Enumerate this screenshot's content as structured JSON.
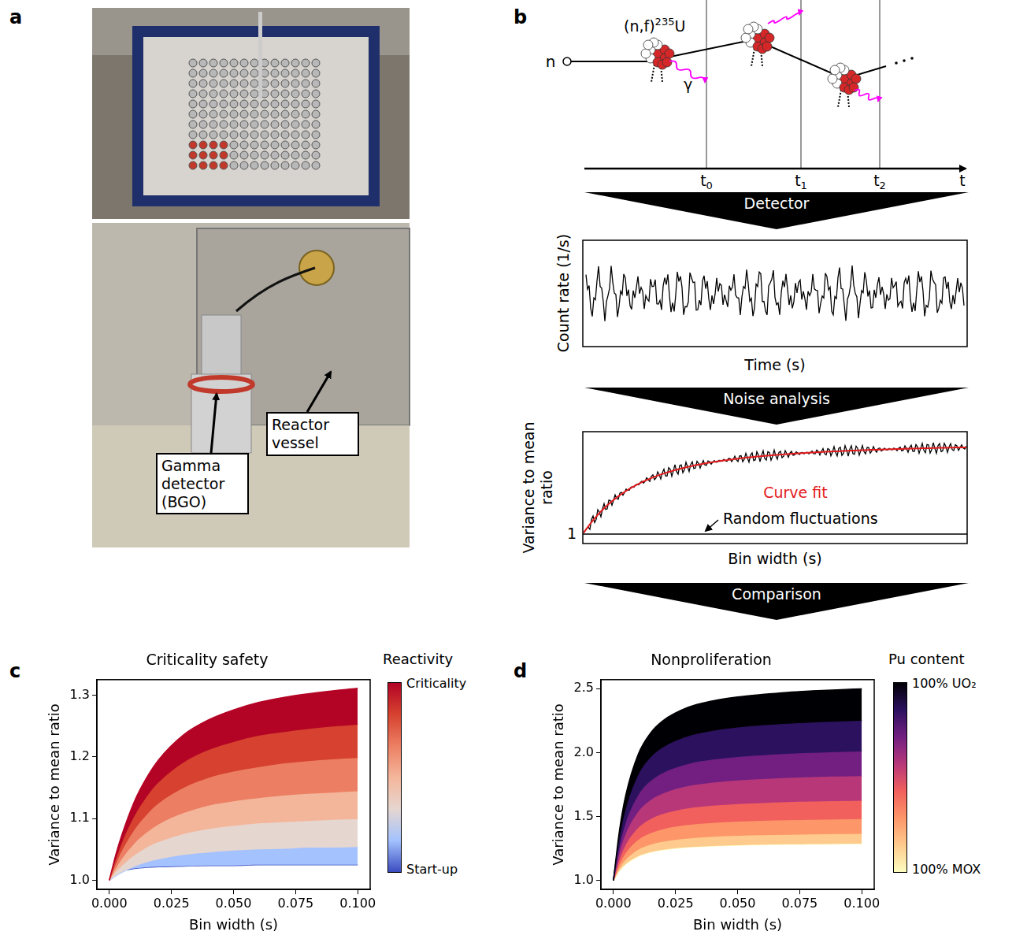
{
  "panel_labels": [
    "a",
    "b",
    "c",
    "d"
  ],
  "photos": {
    "labels": [
      "Gamma detector (BGO)",
      "Reactor vessel"
    ]
  },
  "diagram": {
    "particle": "n",
    "reaction": [
      "(n,f)",
      "235",
      "U"
    ],
    "gamma": "γ",
    "time_axis": "t",
    "time_marks": [
      [
        "t",
        "0"
      ],
      [
        "t",
        "1"
      ],
      [
        "t",
        "2"
      ]
    ],
    "steps": [
      "Detector",
      "Noise analysis",
      "Comparison"
    ],
    "count_plot": {
      "ylabel": "Count rate (1/s)",
      "xlabel": "Time (s)"
    },
    "vmr_plot": {
      "ylabel": "Variance to mean ratio",
      "xlabel": "Bin width (s)",
      "ytick": 1,
      "fit_label": "Curve fit",
      "baseline_label": "Random fluctuations"
    }
  },
  "chart_data": [
    {
      "type": "line",
      "title": "Criticality safety",
      "xlabel": "Bin width (s)",
      "ylabel": "Variance to mean ratio",
      "x": [
        0,
        0.0025,
        0.005,
        0.01,
        0.015,
        0.02,
        0.03,
        0.04,
        0.05,
        0.06,
        0.07,
        0.08,
        0.09,
        0.1
      ],
      "series": [
        {
          "color": "#b40426",
          "values": [
            1,
            1.04,
            1.073,
            1.127,
            1.166,
            1.196,
            1.236,
            1.26,
            1.276,
            1.288,
            1.296,
            1.302,
            1.307,
            1.311
          ]
        },
        {
          "color": "#d6422f",
          "values": [
            1,
            1.032,
            1.06,
            1.103,
            1.135,
            1.159,
            1.191,
            1.211,
            1.224,
            1.234,
            1.24,
            1.245,
            1.249,
            1.252
          ]
        },
        {
          "color": "#ec7f63",
          "values": [
            1,
            1.025,
            1.047,
            1.081,
            1.106,
            1.125,
            1.15,
            1.166,
            1.176,
            1.183,
            1.189,
            1.193,
            1.196,
            1.198
          ]
        },
        {
          "color": "#f4b69b",
          "values": [
            1,
            1.018,
            1.034,
            1.059,
            1.077,
            1.091,
            1.109,
            1.121,
            1.128,
            1.133,
            1.137,
            1.14,
            1.142,
            1.144
          ]
        },
        {
          "color": "#e6d6d0",
          "values": [
            1,
            1.013,
            1.023,
            1.04,
            1.053,
            1.062,
            1.075,
            1.083,
            1.088,
            1.092,
            1.094,
            1.096,
            1.098,
            1.099
          ]
        },
        {
          "color": "#a3c2fe",
          "values": [
            1,
            1.007,
            1.013,
            1.022,
            1.029,
            1.034,
            1.041,
            1.045,
            1.048,
            1.05,
            1.051,
            1.053,
            1.053,
            1.054
          ]
        },
        {
          "color": "#3b4cc0",
          "values": [
            1,
            1.01,
            1.015,
            1.019,
            1.021,
            1.022,
            1.023,
            1.024,
            1.024,
            1.025,
            1.025,
            1.025,
            1.025,
            1.025
          ]
        }
      ],
      "xlim": [
        -0.005,
        0.105
      ],
      "xticks": [
        {
          "value": 0,
          "label": "0.000"
        },
        {
          "value": 0.025,
          "label": "0.025"
        },
        {
          "value": 0.05,
          "label": "0.050"
        },
        {
          "value": 0.075,
          "label": "0.075"
        },
        {
          "value": 0.1,
          "label": "0.100"
        }
      ],
      "ylim": [
        0.985,
        1.325
      ],
      "yticks": [
        {
          "value": 1,
          "label": "1.0"
        },
        {
          "value": 1.1,
          "label": "1.1"
        },
        {
          "value": 1.2,
          "label": "1.2"
        },
        {
          "value": 1.3,
          "label": "1.3"
        }
      ],
      "grid": false,
      "colorbar": {
        "title": "Reactivity",
        "high_label": "Criticality",
        "low_label": "Start-up"
      }
    },
    {
      "type": "line",
      "title": "Nonproliferation",
      "xlabel": "Bin width (s)",
      "ylabel": "Variance to mean ratio",
      "x": [
        0,
        0.0025,
        0.005,
        0.01,
        0.015,
        0.02,
        0.03,
        0.04,
        0.05,
        0.06,
        0.07,
        0.08,
        0.09,
        0.1
      ],
      "series": [
        {
          "color": "#000004",
          "values": [
            1,
            1.399,
            1.669,
            1.987,
            2.154,
            2.25,
            2.353,
            2.404,
            2.435,
            2.455,
            2.471,
            2.482,
            2.491,
            2.498
          ]
        },
        {
          "color": "#2c115f",
          "values": [
            1,
            1.333,
            1.558,
            1.823,
            1.962,
            2.041,
            2.127,
            2.17,
            2.196,
            2.213,
            2.226,
            2.235,
            2.243,
            2.248
          ]
        },
        {
          "color": "#721f81",
          "values": [
            1,
            1.269,
            1.45,
            1.665,
            1.777,
            1.841,
            1.91,
            1.945,
            1.966,
            1.98,
            1.99,
            1.998,
            2.004,
            2.008
          ]
        },
        {
          "color": "#b73779",
          "values": [
            1,
            1.218,
            1.365,
            1.538,
            1.629,
            1.681,
            1.737,
            1.765,
            1.782,
            1.793,
            1.802,
            1.808,
            1.813,
            1.816
          ]
        },
        {
          "color": "#f1605d",
          "values": [
            1,
            1.166,
            1.279,
            1.411,
            1.481,
            1.521,
            1.564,
            1.585,
            1.598,
            1.606,
            1.613,
            1.618,
            1.621,
            1.624
          ]
        },
        {
          "color": "#fd9668",
          "values": [
            1,
            1.128,
            1.215,
            1.317,
            1.37,
            1.401,
            1.434,
            1.45,
            1.46,
            1.467,
            1.472,
            1.475,
            1.478,
            1.48
          ]
        },
        {
          "color": "#feca8d",
          "values": [
            1,
            1.097,
            1.163,
            1.241,
            1.281,
            1.304,
            1.329,
            1.342,
            1.35,
            1.355,
            1.358,
            1.361,
            1.363,
            1.365
          ]
        },
        {
          "color": "#fcfdbf",
          "values": [
            1,
            1.077,
            1.129,
            1.19,
            1.222,
            1.24,
            1.26,
            1.27,
            1.276,
            1.28,
            1.283,
            1.285,
            1.287,
            1.288
          ]
        }
      ],
      "xlim": [
        -0.005,
        0.105
      ],
      "xticks": [
        {
          "value": 0,
          "label": "0.000"
        },
        {
          "value": 0.025,
          "label": "0.025"
        },
        {
          "value": 0.05,
          "label": "0.050"
        },
        {
          "value": 0.075,
          "label": "0.075"
        },
        {
          "value": 0.1,
          "label": "0.100"
        }
      ],
      "ylim": [
        0.93,
        2.57
      ],
      "yticks": [
        {
          "value": 1,
          "label": "1.0"
        },
        {
          "value": 1.5,
          "label": "1.5"
        },
        {
          "value": 2,
          "label": "2.0"
        },
        {
          "value": 2.5,
          "label": "2.5"
        }
      ],
      "grid": false,
      "colorbar": {
        "title": "Pu content",
        "high_label": "100% UO₂",
        "low_label": "100% MOX"
      }
    }
  ]
}
